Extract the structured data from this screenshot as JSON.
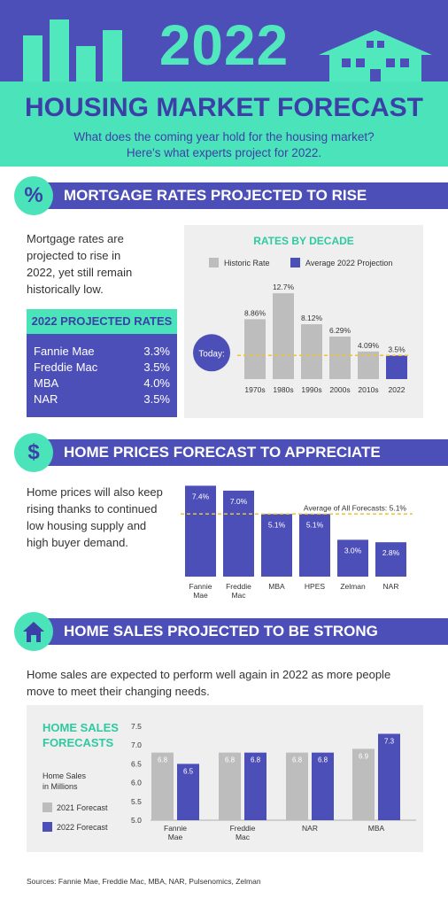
{
  "header": {
    "year": "2022",
    "title": "HOUSING MARKET FORECAST",
    "subtitle_line1": "What does the coming year hold for the housing market?",
    "subtitle_line2": "Here's what experts project for 2022."
  },
  "colors": {
    "purple": "#4d4fb8",
    "teal": "#4be3b9",
    "gray": "#bdbdbd",
    "gold": "#e8c33a",
    "panel": "#efefef"
  },
  "sections": {
    "mortgage": {
      "icon": "percent-icon",
      "glyph": "%",
      "title": "MORTGAGE RATES PROJECTED TO RISE",
      "text": [
        "Mortgage rates are",
        "projected to rise in",
        "2022, yet still remain",
        "historically low."
      ],
      "projected_title": "2022 PROJECTED RATES",
      "projected": [
        {
          "name": "Fannie Mae",
          "value": "3.3%"
        },
        {
          "name": "Freddie Mac",
          "value": "3.5%"
        },
        {
          "name": "MBA",
          "value": "4.0%"
        },
        {
          "name": "NAR",
          "value": "3.5%"
        }
      ]
    },
    "prices": {
      "icon": "dollar-icon",
      "glyph": "$",
      "title": "HOME PRICES FORECAST TO APPRECIATE",
      "text": [
        "Home prices will also keep",
        "rising thanks to continued",
        "low housing supply and",
        "high buyer demand."
      ]
    },
    "sales": {
      "icon": "house-icon",
      "title": "HOME SALES PROJECTED TO BE STRONG",
      "text": [
        "Home sales are expected to perform well again in 2022 as more people",
        "move to meet their changing needs."
      ]
    }
  },
  "sources": "Sources: Fannie Mae, Freddie Mac, MBA, NAR, Pulsenomics, Zelman",
  "chart_data": [
    {
      "type": "bar",
      "title": "RATES BY DECADE",
      "legend": [
        "Historic Rate",
        "Average 2022 Projection"
      ],
      "legend_position": "top",
      "categories": [
        "1970s",
        "1980s",
        "1990s",
        "2000s",
        "2010s",
        "2022"
      ],
      "values": [
        8.86,
        12.7,
        8.12,
        6.29,
        4.09,
        3.5
      ],
      "labels": [
        "8.86%",
        "12.7%",
        "8.12%",
        "6.29%",
        "4.09%",
        "3.5%"
      ],
      "annotation": "Today:",
      "reference_value": 3.5,
      "ylim": [
        0,
        13.5
      ]
    },
    {
      "type": "bar",
      "categories": [
        [
          "Fannie",
          "Mae"
        ],
        [
          "Freddie",
          "Mac"
        ],
        [
          "MBA"
        ],
        [
          "HPES"
        ],
        [
          "Zelman"
        ],
        [
          "NAR"
        ]
      ],
      "values": [
        7.4,
        7.0,
        5.1,
        5.1,
        3.0,
        2.8
      ],
      "labels": [
        "7.4%",
        "7.0%",
        "5.1%",
        "5.1%",
        "3.0%",
        "2.8%"
      ],
      "annotation": "Average of All Forecasts: 5.1%",
      "reference_value": 5.1,
      "ylim": [
        0,
        7.5
      ]
    },
    {
      "type": "bar",
      "title_line1": "HOME SALES",
      "title_line2": "FORECASTS",
      "ylabel_line1": "Home Sales",
      "ylabel_line2": "in Millions",
      "categories": [
        [
          "Fannie",
          "Mae"
        ],
        [
          "Freddie",
          "Mac"
        ],
        [
          "NAR"
        ],
        [
          "MBA"
        ]
      ],
      "series": [
        {
          "name": "2021 Forecast",
          "values": [
            6.8,
            6.8,
            6.8,
            6.9
          ],
          "labels": [
            "6.8",
            "6.8",
            "6.8",
            "6.9"
          ]
        },
        {
          "name": "2022 Forecast",
          "values": [
            6.5,
            6.8,
            6.8,
            7.3
          ],
          "labels": [
            "6.5",
            "6.8",
            "6.8",
            "7.3"
          ]
        }
      ],
      "yticks": [
        "7.5",
        "7.0",
        "6.5",
        "6.0",
        "5.5",
        "5.0"
      ],
      "ylim": [
        5.0,
        7.5
      ],
      "legend_position": "left"
    }
  ]
}
